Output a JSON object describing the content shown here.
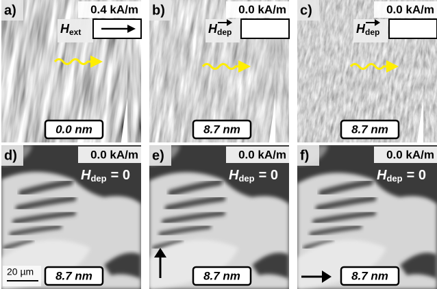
{
  "panels": [
    {
      "label": "a)",
      "field": "0.4 kA/m",
      "h": "H",
      "h_sub": "ext",
      "thickness": "0.0 nm"
    },
    {
      "label": "b)",
      "field": "0.0 kA/m",
      "h": "H",
      "h_sub": "dep",
      "thickness": "8.7 nm"
    },
    {
      "label": "c)",
      "field": "0.0 kA/m",
      "h": "H",
      "h_sub": "dep",
      "thickness": "8.7 nm"
    },
    {
      "label": "d)",
      "field": "0.0 kA/m",
      "h": "H",
      "h_sub": "dep",
      "h_value": "= 0",
      "thickness": "8.7 nm"
    },
    {
      "label": "e)",
      "field": "0.0 kA/m",
      "h": "H",
      "h_sub": "dep",
      "h_value": "= 0",
      "thickness": "8.7 nm"
    },
    {
      "label": "f)",
      "field": "0.0 kA/m",
      "h": "H",
      "h_sub": "dep",
      "h_value": "= 0",
      "thickness": "8.7 nm"
    }
  ],
  "scale_bar": "20 µm"
}
